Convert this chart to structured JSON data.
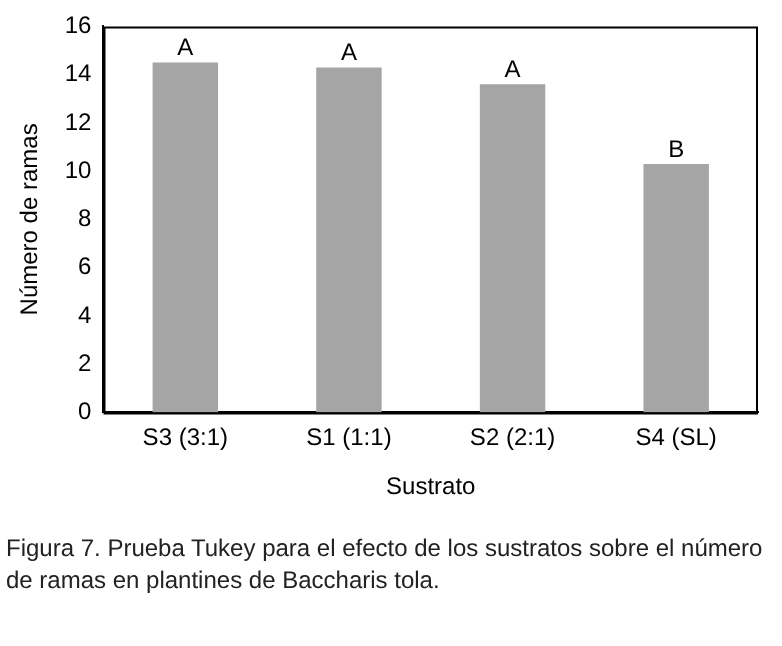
{
  "chart_data": {
    "type": "bar",
    "xlabel": "Sustrato",
    "ylabel": "Número de ramas",
    "categories": [
      "S3 (3:1)",
      "S1 (1:1)",
      "S2 (2:1)",
      "S4 (SL)"
    ],
    "values": [
      14.5,
      14.3,
      13.6,
      10.3
    ],
    "color": "#a5a5a5",
    "ylim": [
      0,
      16
    ],
    "yticks": [
      0,
      2,
      4,
      6,
      8,
      10,
      12,
      14,
      16
    ],
    "grid": false,
    "legend": false,
    "annotations": [
      {
        "text": "A",
        "x": "S3 (3:1)",
        "y": 14.5
      },
      {
        "text": "A",
        "x": "S1 (1:1)",
        "y": 14.3
      },
      {
        "text": "A",
        "x": "S2 (2:1)",
        "y": 13.6
      },
      {
        "text": "B",
        "x": "S4 (SL)",
        "y": 10.3
      },
      "Figura 7. Prueba Tukey para el efecto de los sustratos sobre el número de ramas en plantines de Baccharis tola."
    ]
  }
}
